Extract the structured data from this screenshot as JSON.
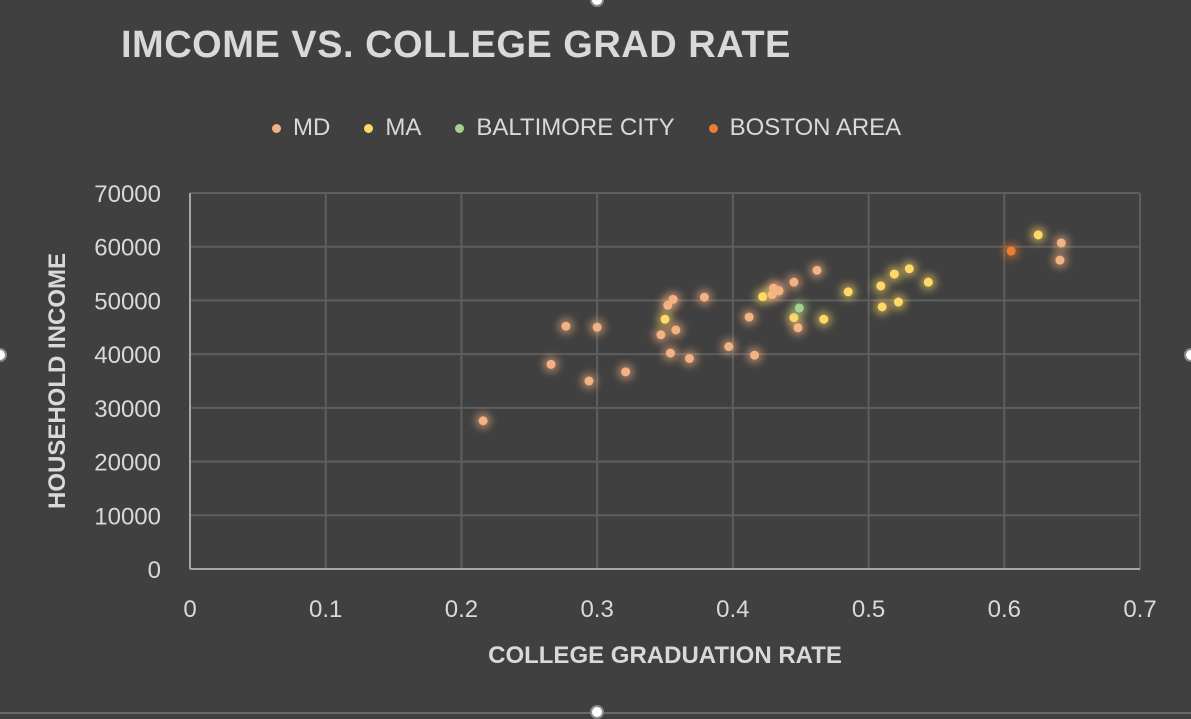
{
  "chart_data": {
    "type": "scatter",
    "title": "IMCOME VS. COLLEGE GRAD RATE",
    "xlabel": "COLLEGE GRADUATION RATE",
    "ylabel": "HOUSEHOLD INCOME",
    "xlim": [
      0,
      0.7
    ],
    "ylim": [
      0,
      70000
    ],
    "x_ticks": [
      "0",
      "0.1",
      "0.2",
      "0.3",
      "0.4",
      "0.5",
      "0.6",
      "0.7"
    ],
    "y_ticks": [
      "0",
      "10000",
      "20000",
      "30000",
      "40000",
      "50000",
      "60000",
      "70000"
    ],
    "grid": true,
    "legend_position": "top",
    "series": [
      {
        "name": "MD",
        "color": "#f4b183",
        "points": [
          [
            0.216,
            27600
          ],
          [
            0.266,
            38100
          ],
          [
            0.277,
            45200
          ],
          [
            0.294,
            35000
          ],
          [
            0.3,
            45000
          ],
          [
            0.321,
            36700
          ],
          [
            0.347,
            43600
          ],
          [
            0.352,
            49100
          ],
          [
            0.354,
            40200
          ],
          [
            0.356,
            50200
          ],
          [
            0.358,
            44500
          ],
          [
            0.368,
            39200
          ],
          [
            0.379,
            50600
          ],
          [
            0.397,
            41400
          ],
          [
            0.412,
            46900
          ],
          [
            0.416,
            39800
          ],
          [
            0.429,
            51100
          ],
          [
            0.43,
            52300
          ],
          [
            0.434,
            51800
          ],
          [
            0.445,
            53400
          ],
          [
            0.448,
            44900
          ],
          [
            0.462,
            55600
          ],
          [
            0.641,
            57500
          ],
          [
            0.642,
            60700
          ]
        ]
      },
      {
        "name": "MA",
        "color": "#ffd966",
        "points": [
          [
            0.35,
            46500
          ],
          [
            0.422,
            50700
          ],
          [
            0.445,
            46800
          ],
          [
            0.467,
            46500
          ],
          [
            0.485,
            51600
          ],
          [
            0.509,
            52700
          ],
          [
            0.51,
            48800
          ],
          [
            0.519,
            54900
          ],
          [
            0.522,
            49700
          ],
          [
            0.53,
            55900
          ],
          [
            0.544,
            53400
          ],
          [
            0.625,
            62200
          ]
        ]
      },
      {
        "name": "BALTIMORE CITY",
        "color": "#a9d18e",
        "points": [
          [
            0.449,
            48600
          ]
        ]
      },
      {
        "name": "BOSTON AREA",
        "color": "#ed7d31",
        "points": [
          [
            0.605,
            59200
          ]
        ]
      }
    ]
  }
}
